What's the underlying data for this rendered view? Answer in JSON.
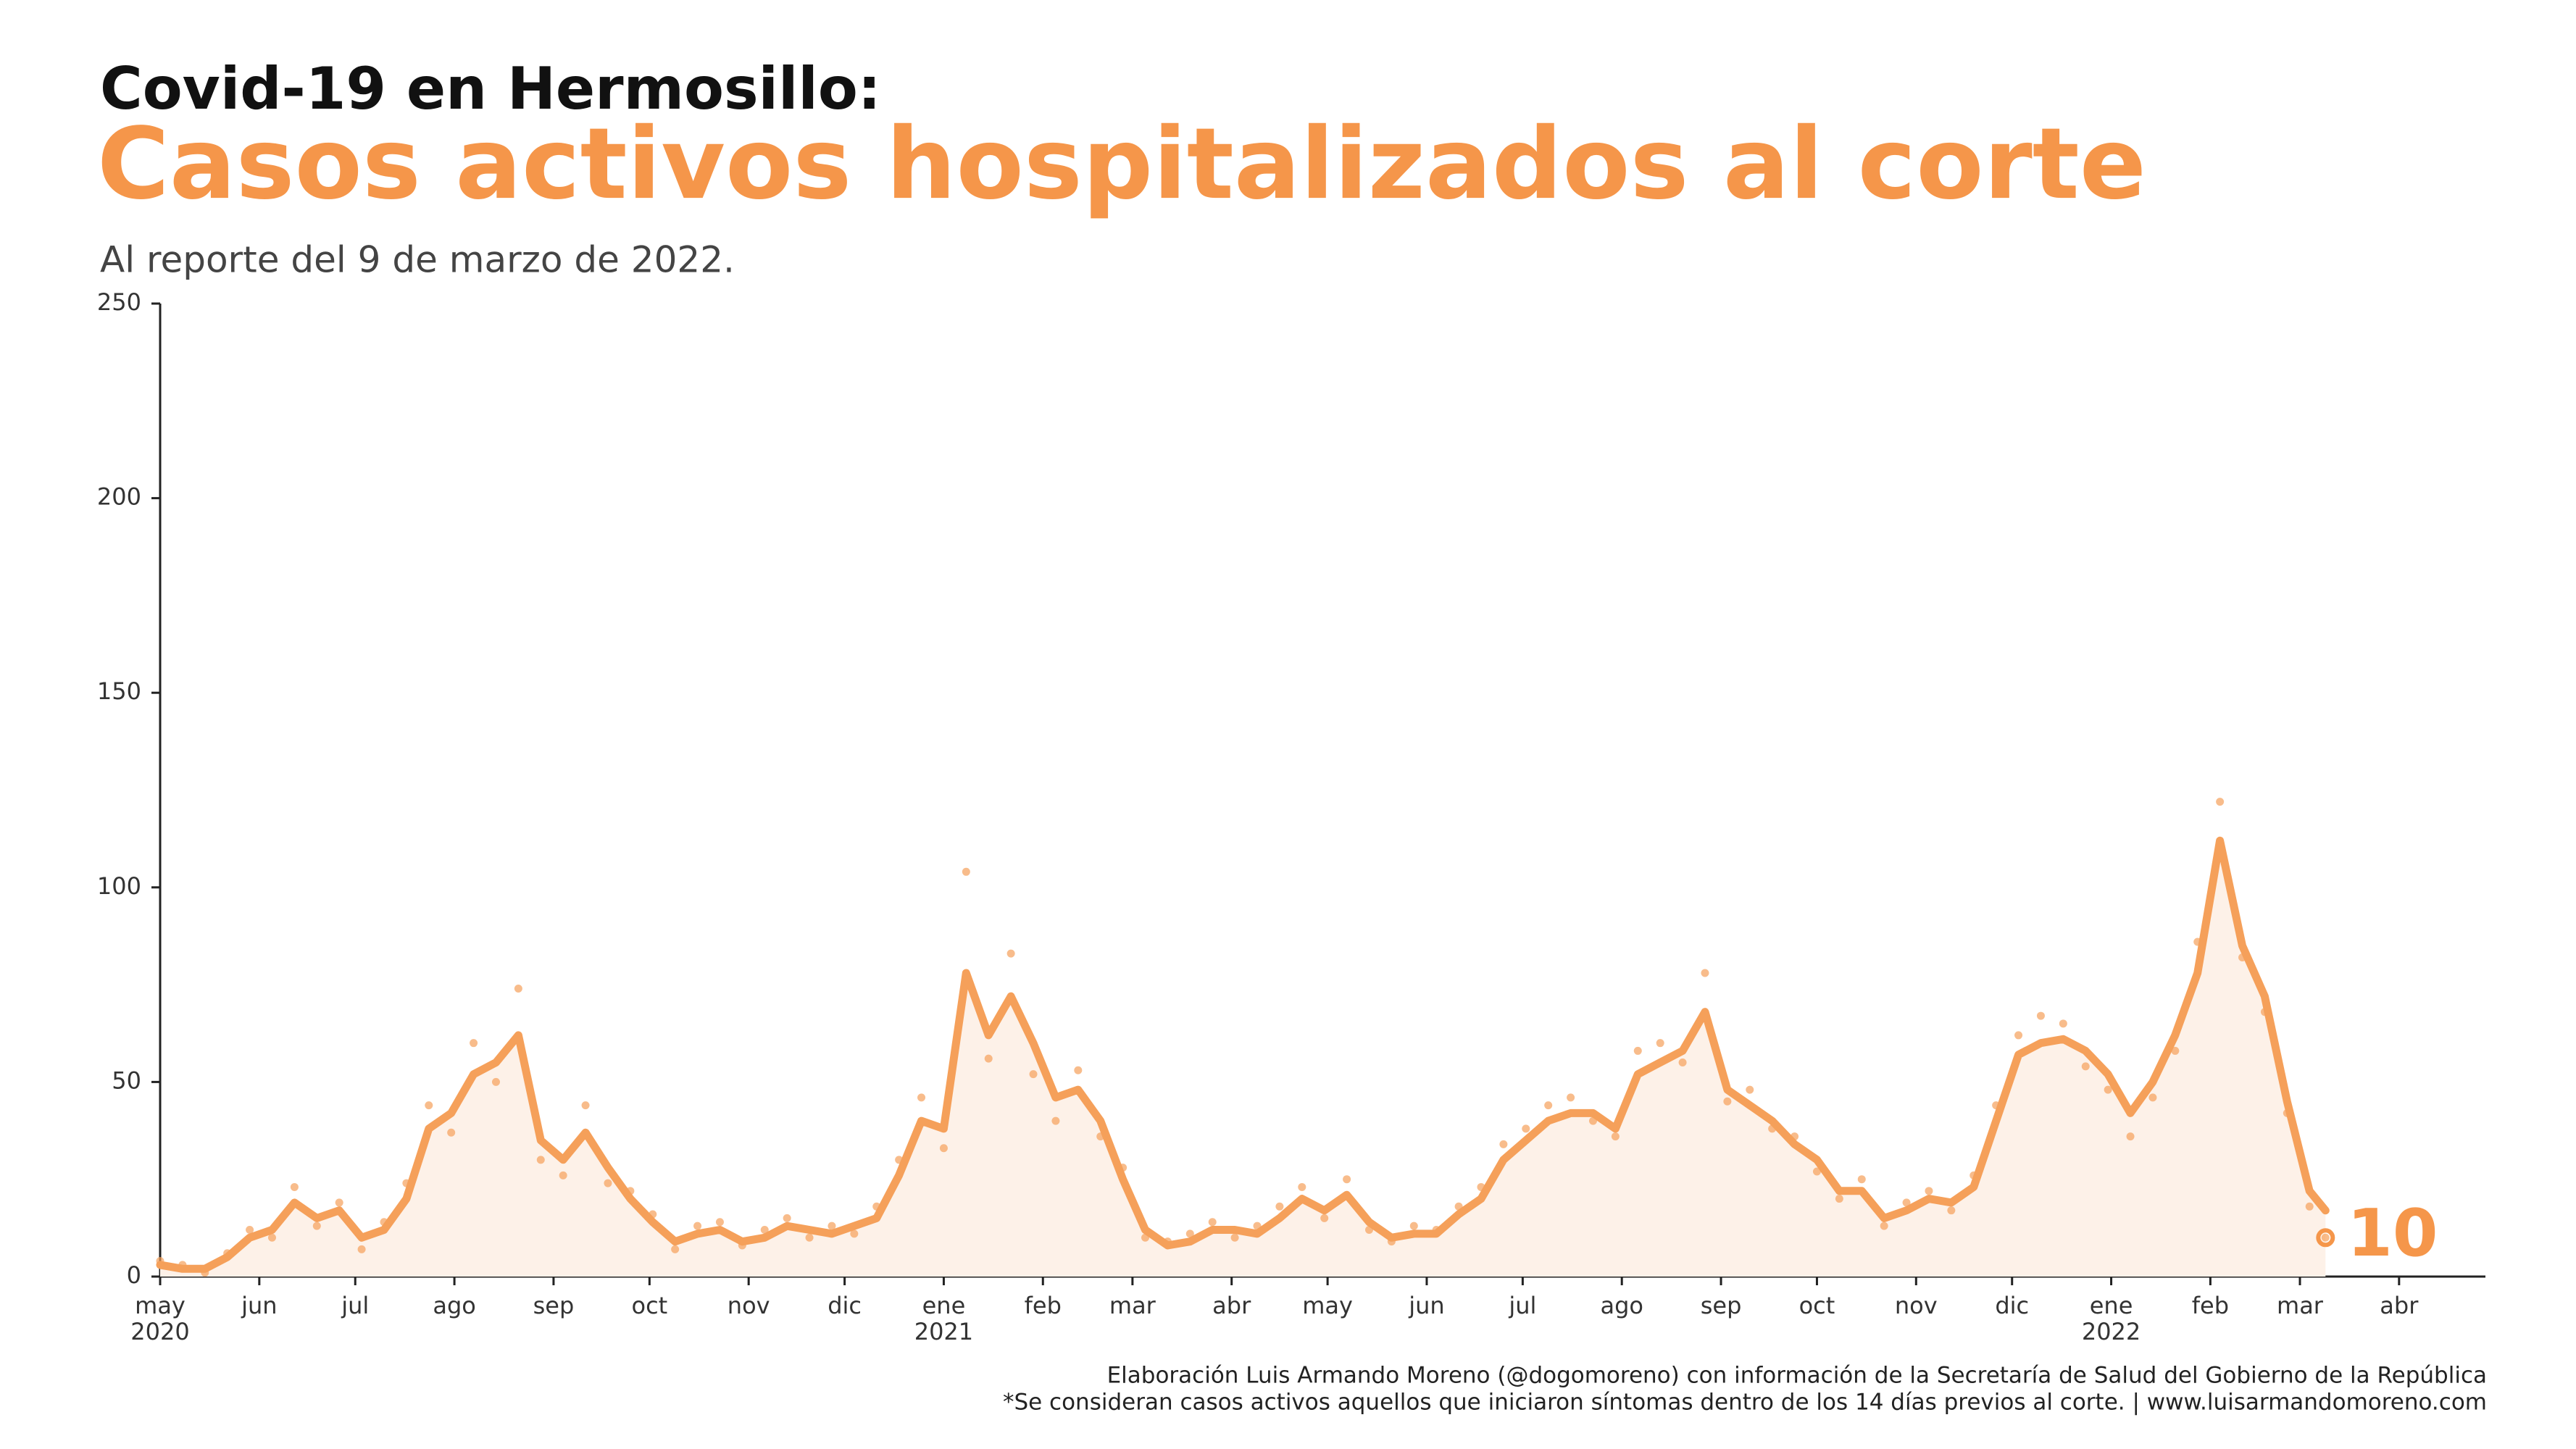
{
  "chart_data": {
    "type": "line",
    "title": "Covid-19 en Hermosillo:",
    "heading": "Casos activos hospitalizados al corte",
    "subtitle": "Al reporte del 9 de marzo de 2022.",
    "footnotes": [
      "Elaboración Luis Armando Moreno (@dogomoreno) con información de la Secretaría de Salud del Gobierno de la República",
      "*Se consideran casos activos aquellos que iniciaron síntomas dentro de los 14 días previos al corte. | www.luisarmandomoreno.com"
    ],
    "x": [
      "2020-05-01",
      "2020-05-08",
      "2020-05-15",
      "2020-05-22",
      "2020-05-29",
      "2020-06-05",
      "2020-06-12",
      "2020-06-19",
      "2020-06-26",
      "2020-07-03",
      "2020-07-10",
      "2020-07-17",
      "2020-07-24",
      "2020-07-31",
      "2020-08-07",
      "2020-08-14",
      "2020-08-21",
      "2020-08-28",
      "2020-09-04",
      "2020-09-11",
      "2020-09-18",
      "2020-09-25",
      "2020-10-02",
      "2020-10-09",
      "2020-10-16",
      "2020-10-23",
      "2020-10-30",
      "2020-11-06",
      "2020-11-13",
      "2020-11-20",
      "2020-11-27",
      "2020-12-04",
      "2020-12-11",
      "2020-12-18",
      "2020-12-25",
      "2021-01-01",
      "2021-01-08",
      "2021-01-15",
      "2021-01-22",
      "2021-01-29",
      "2021-02-05",
      "2021-02-12",
      "2021-02-19",
      "2021-02-26",
      "2021-03-05",
      "2021-03-12",
      "2021-03-19",
      "2021-03-26",
      "2021-04-02",
      "2021-04-09",
      "2021-04-16",
      "2021-04-23",
      "2021-04-30",
      "2021-05-07",
      "2021-05-14",
      "2021-05-21",
      "2021-05-28",
      "2021-06-04",
      "2021-06-11",
      "2021-06-18",
      "2021-06-25",
      "2021-07-02",
      "2021-07-09",
      "2021-07-16",
      "2021-07-23",
      "2021-07-30",
      "2021-08-06",
      "2021-08-13",
      "2021-08-20",
      "2021-08-27",
      "2021-09-03",
      "2021-09-10",
      "2021-09-17",
      "2021-09-24",
      "2021-10-01",
      "2021-10-08",
      "2021-10-15",
      "2021-10-22",
      "2021-10-29",
      "2021-11-05",
      "2021-11-12",
      "2021-11-19",
      "2021-11-26",
      "2021-12-03",
      "2021-12-10",
      "2021-12-17",
      "2021-12-24",
      "2021-12-31",
      "2022-01-07",
      "2022-01-14",
      "2022-01-21",
      "2022-01-28",
      "2022-02-04",
      "2022-02-11",
      "2022-02-18",
      "2022-02-25",
      "2022-03-04",
      "2022-03-09"
    ],
    "series": [
      {
        "mark": "line",
        "color": "#f5a05a",
        "values": [
          3,
          2,
          2,
          5,
          10,
          12,
          19,
          15,
          17,
          10,
          12,
          20,
          38,
          42,
          52,
          55,
          62,
          35,
          30,
          37,
          28,
          20,
          14,
          9,
          11,
          12,
          9,
          10,
          13,
          12,
          11,
          13,
          15,
          26,
          40,
          38,
          78,
          62,
          72,
          60,
          46,
          48,
          40,
          25,
          12,
          8,
          9,
          12,
          12,
          11,
          15,
          20,
          17,
          21,
          14,
          10,
          11,
          11,
          16,
          20,
          30,
          35,
          40,
          42,
          42,
          38,
          52,
          55,
          58,
          68,
          48,
          44,
          40,
          34,
          30,
          22,
          22,
          15,
          17,
          20,
          19,
          23,
          40,
          57,
          60,
          61,
          58,
          52,
          42,
          50,
          62,
          78,
          112,
          85,
          72,
          45,
          22,
          17
        ]
      },
      {
        "mark": "scatter",
        "color": "#f5a05a",
        "values": [
          4,
          3,
          1,
          6,
          12,
          10,
          23,
          13,
          19,
          7,
          14,
          24,
          44,
          37,
          60,
          50,
          74,
          30,
          26,
          44,
          24,
          22,
          16,
          7,
          13,
          14,
          8,
          12,
          15,
          10,
          13,
          11,
          18,
          30,
          46,
          33,
          104,
          56,
          83,
          52,
          40,
          53,
          36,
          28,
          10,
          9,
          11,
          14,
          10,
          13,
          18,
          23,
          15,
          25,
          12,
          9,
          13,
          12,
          18,
          23,
          34,
          38,
          44,
          46,
          40,
          36,
          58,
          60,
          55,
          78,
          45,
          48,
          38,
          36,
          27,
          20,
          25,
          13,
          19,
          22,
          17,
          26,
          44,
          62,
          67,
          65,
          54,
          48,
          36,
          46,
          58,
          86,
          122,
          82,
          68,
          42,
          18,
          10
        ]
      }
    ],
    "last_value": 10,
    "xlim": [
      "2020-05-01",
      "2022-04-28"
    ],
    "xticks": [
      {
        "value": "2020-05-01",
        "label": "may"
      },
      {
        "value": "2020-06-01",
        "label": "jun"
      },
      {
        "value": "2020-07-01",
        "label": "jul"
      },
      {
        "value": "2020-08-01",
        "label": "ago"
      },
      {
        "value": "2020-09-01",
        "label": "sep"
      },
      {
        "value": "2020-10-01",
        "label": "oct"
      },
      {
        "value": "2020-11-01",
        "label": "nov"
      },
      {
        "value": "2020-12-01",
        "label": "dic"
      },
      {
        "value": "2021-01-01",
        "label": "ene"
      },
      {
        "value": "2021-02-01",
        "label": "feb"
      },
      {
        "value": "2021-03-01",
        "label": "mar"
      },
      {
        "value": "2021-04-01",
        "label": "abr"
      },
      {
        "value": "2021-05-01",
        "label": "may"
      },
      {
        "value": "2021-06-01",
        "label": "jun"
      },
      {
        "value": "2021-07-01",
        "label": "jul"
      },
      {
        "value": "2021-08-01",
        "label": "ago"
      },
      {
        "value": "2021-09-01",
        "label": "sep"
      },
      {
        "value": "2021-10-01",
        "label": "oct"
      },
      {
        "value": "2021-11-01",
        "label": "nov"
      },
      {
        "value": "2021-12-01",
        "label": "dic"
      },
      {
        "value": "2022-01-01",
        "label": "ene"
      },
      {
        "value": "2022-02-01",
        "label": "feb"
      },
      {
        "value": "2022-03-01",
        "label": "mar"
      },
      {
        "value": "2022-04-01",
        "label": "abr"
      }
    ],
    "year_labels": [
      {
        "value": "2020-05-01",
        "label": "2020"
      },
      {
        "value": "2021-01-01",
        "label": "2021"
      },
      {
        "value": "2022-01-01",
        "label": "2022"
      }
    ],
    "ylim": [
      0,
      250
    ],
    "yticks": [
      0,
      50,
      100,
      150,
      200,
      250
    ],
    "area_color": "#fdf1e8",
    "accent_color": "#f5964a",
    "grid": false
  }
}
